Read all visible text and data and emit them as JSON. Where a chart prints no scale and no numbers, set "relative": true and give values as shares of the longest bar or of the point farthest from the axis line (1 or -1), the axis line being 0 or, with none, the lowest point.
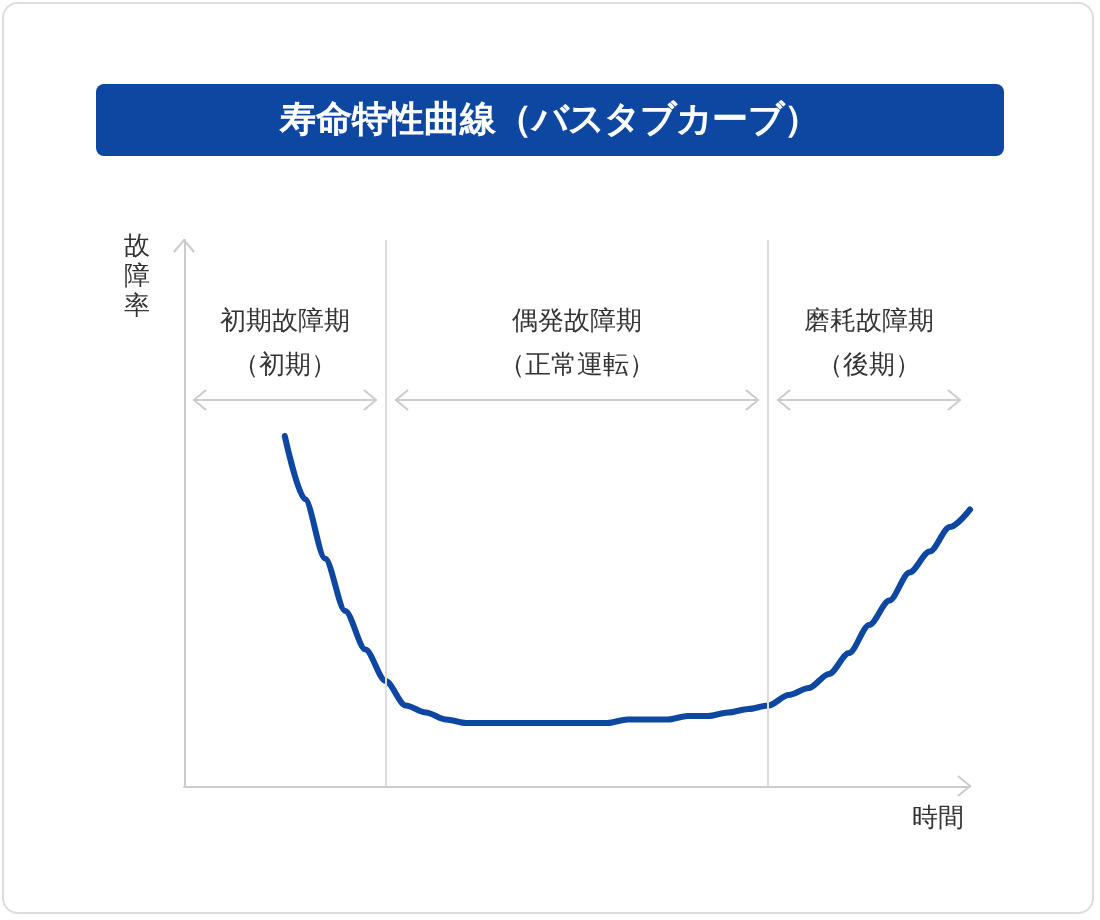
{
  "chart_data": {
    "type": "line",
    "title": "寿命特性曲線（バスタブカーブ）",
    "xlabel": "時間",
    "ylabel": "故障率",
    "relative": true,
    "marker": "none",
    "line_style": "solid",
    "grid": false,
    "categories": [
      null,
      null,
      null,
      null,
      null,
      null,
      null,
      null,
      null,
      null,
      null,
      null,
      null,
      null,
      null,
      null,
      null,
      null,
      null,
      null,
      null,
      null,
      null,
      null,
      null,
      null,
      null,
      null,
      null,
      null,
      null,
      null,
      null,
      null,
      null,
      null,
      null,
      null,
      null,
      null
    ],
    "series": [
      {
        "color": "#0d47a1",
        "values": [
          null,
          null,
          null,
          null,
          null,
          1.0,
          0.82,
          0.65,
          0.5,
          0.39,
          0.3,
          0.23,
          0.21,
          0.19,
          0.18,
          0.18,
          0.18,
          0.18,
          0.18,
          0.18,
          0.18,
          0.18,
          0.19,
          0.19,
          0.19,
          0.2,
          0.2,
          0.21,
          0.22,
          0.23,
          0.26,
          0.28,
          0.32,
          0.38,
          0.46,
          0.53,
          0.61,
          0.67,
          0.74,
          0.79
        ]
      }
    ],
    "annotations": [
      "初期故障期",
      "（初期）",
      "偶発故障期",
      "（正常運転）",
      "磨耗故障期",
      "（後期）"
    ]
  }
}
